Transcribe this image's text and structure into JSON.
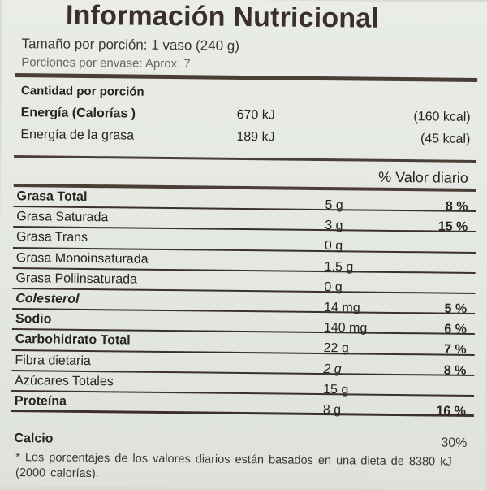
{
  "label": {
    "title": "Información Nutricional",
    "serving_size": "Tamaño por porción: 1 vaso (240 g)",
    "servings_per_container": "Porciones por envase: Aprox. 7",
    "amount_per_serving": "Cantidad por porción",
    "energy": {
      "label": "Energía  (Calorías )",
      "kj": "670 kJ",
      "kcal": "(160 kcal)"
    },
    "energy_fat": {
      "label": "Energía de la grasa",
      "kj": "189 kJ",
      "kcal": "(45 kcal)"
    },
    "dv_header": "% Valor diario",
    "rows": [
      {
        "name": "Grasa Total",
        "amount": "5 g",
        "dv": "8 %"
      },
      {
        "name": "Grasa Saturada",
        "amount": "3 g",
        "dv": "15 %"
      },
      {
        "name": "Grasa Trans",
        "amount": "0 g",
        "dv": ""
      },
      {
        "name": "Grasa Monoinsaturada",
        "amount": "1.5 g",
        "dv": ""
      },
      {
        "name": "Grasa Poliinsaturada",
        "amount": "0 g",
        "dv": ""
      },
      {
        "name": "Colesterol",
        "amount": "14 mg",
        "dv": "5 %"
      },
      {
        "name": "Sodio",
        "amount": "140 mg",
        "dv": "6 %"
      },
      {
        "name": "Carbohidrato Total",
        "amount": "22 g",
        "dv": "7 %"
      },
      {
        "name": "Fibra dietaria",
        "amount": "2 g",
        "dv": "8 %"
      },
      {
        "name": "Azúcares Totales",
        "amount": "15 g",
        "dv": ""
      },
      {
        "name": "Proteína",
        "amount": "8 g",
        "dv": "16 %"
      }
    ],
    "calcium": {
      "name": "Calcio",
      "dv": "30%"
    },
    "footnote": "* Los porcentajes de los valores diarios están basados en una dieta de 8380 kJ (2000  calorías)."
  }
}
